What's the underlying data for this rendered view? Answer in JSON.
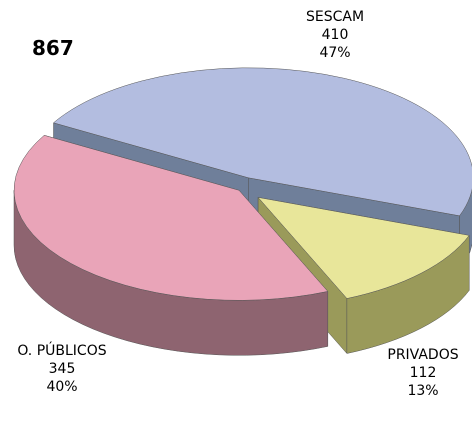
{
  "chart_data": {
    "type": "pie3d",
    "total": 867,
    "categories": [
      "SESCAM",
      "PRIVADOS",
      "O. PÚBLICOS"
    ],
    "values": [
      410,
      112,
      345
    ],
    "percent_labels": [
      "47%",
      "13%",
      "40%"
    ],
    "colors": [
      "#b3bde0",
      "#e8e69a",
      "#e9a4b8"
    ],
    "side_colors": [
      "#6f7f9a",
      "#9a9a5a",
      "#8e6470"
    ]
  }
}
